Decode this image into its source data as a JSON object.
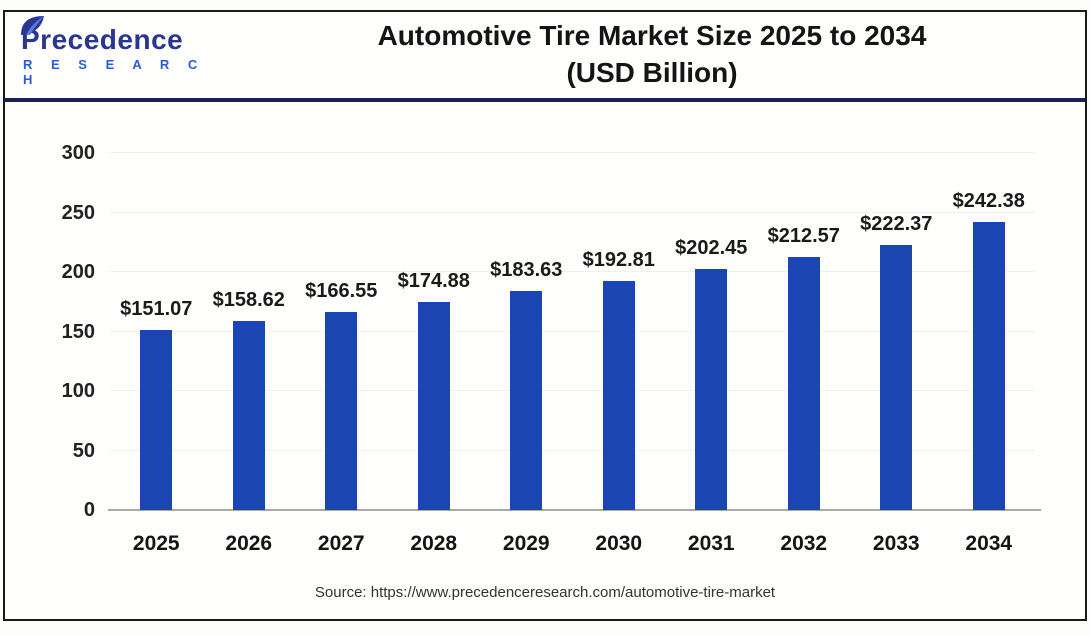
{
  "header": {
    "logo": {
      "name": "Precedence",
      "subtitle": "R E S E A R C H"
    },
    "title_line1": "Automotive Tire Market Size 2025 to 2034",
    "title_line2": "(USD Billion)"
  },
  "chart_data": {
    "type": "bar",
    "title": "Automotive Tire Market Size 2025 to 2034 (USD Billion)",
    "categories": [
      "2025",
      "2026",
      "2027",
      "2028",
      "2029",
      "2030",
      "2031",
      "2032",
      "2033",
      "2034"
    ],
    "values": [
      151.07,
      158.62,
      166.55,
      174.88,
      183.63,
      192.81,
      202.45,
      212.57,
      222.37,
      242.38
    ],
    "value_labels": [
      "$151.07",
      "$158.62",
      "$166.55",
      "$174.88",
      "$183.63",
      "$192.81",
      "$202.45",
      "$212.57",
      "$222.37",
      "$242.38"
    ],
    "xlabel": "",
    "ylabel": "",
    "ylim": [
      0,
      300
    ],
    "y_ticks": [
      0,
      50,
      100,
      150,
      200,
      250,
      300
    ],
    "grid": true,
    "legend": "none",
    "bar_color": "#1c45b4"
  },
  "footer": {
    "source": "Source: https://www.precedenceresearch.com/automotive-tire-market"
  },
  "colors": {
    "bar": "#1c45b4",
    "header_separator": "#1b2158",
    "frame_border": "#1a1a1a",
    "logo_navy": "#2b3690",
    "logo_blue": "#2d5bd1",
    "gridline": "#f1f1ee",
    "axis_line": "#a9a9a9"
  }
}
